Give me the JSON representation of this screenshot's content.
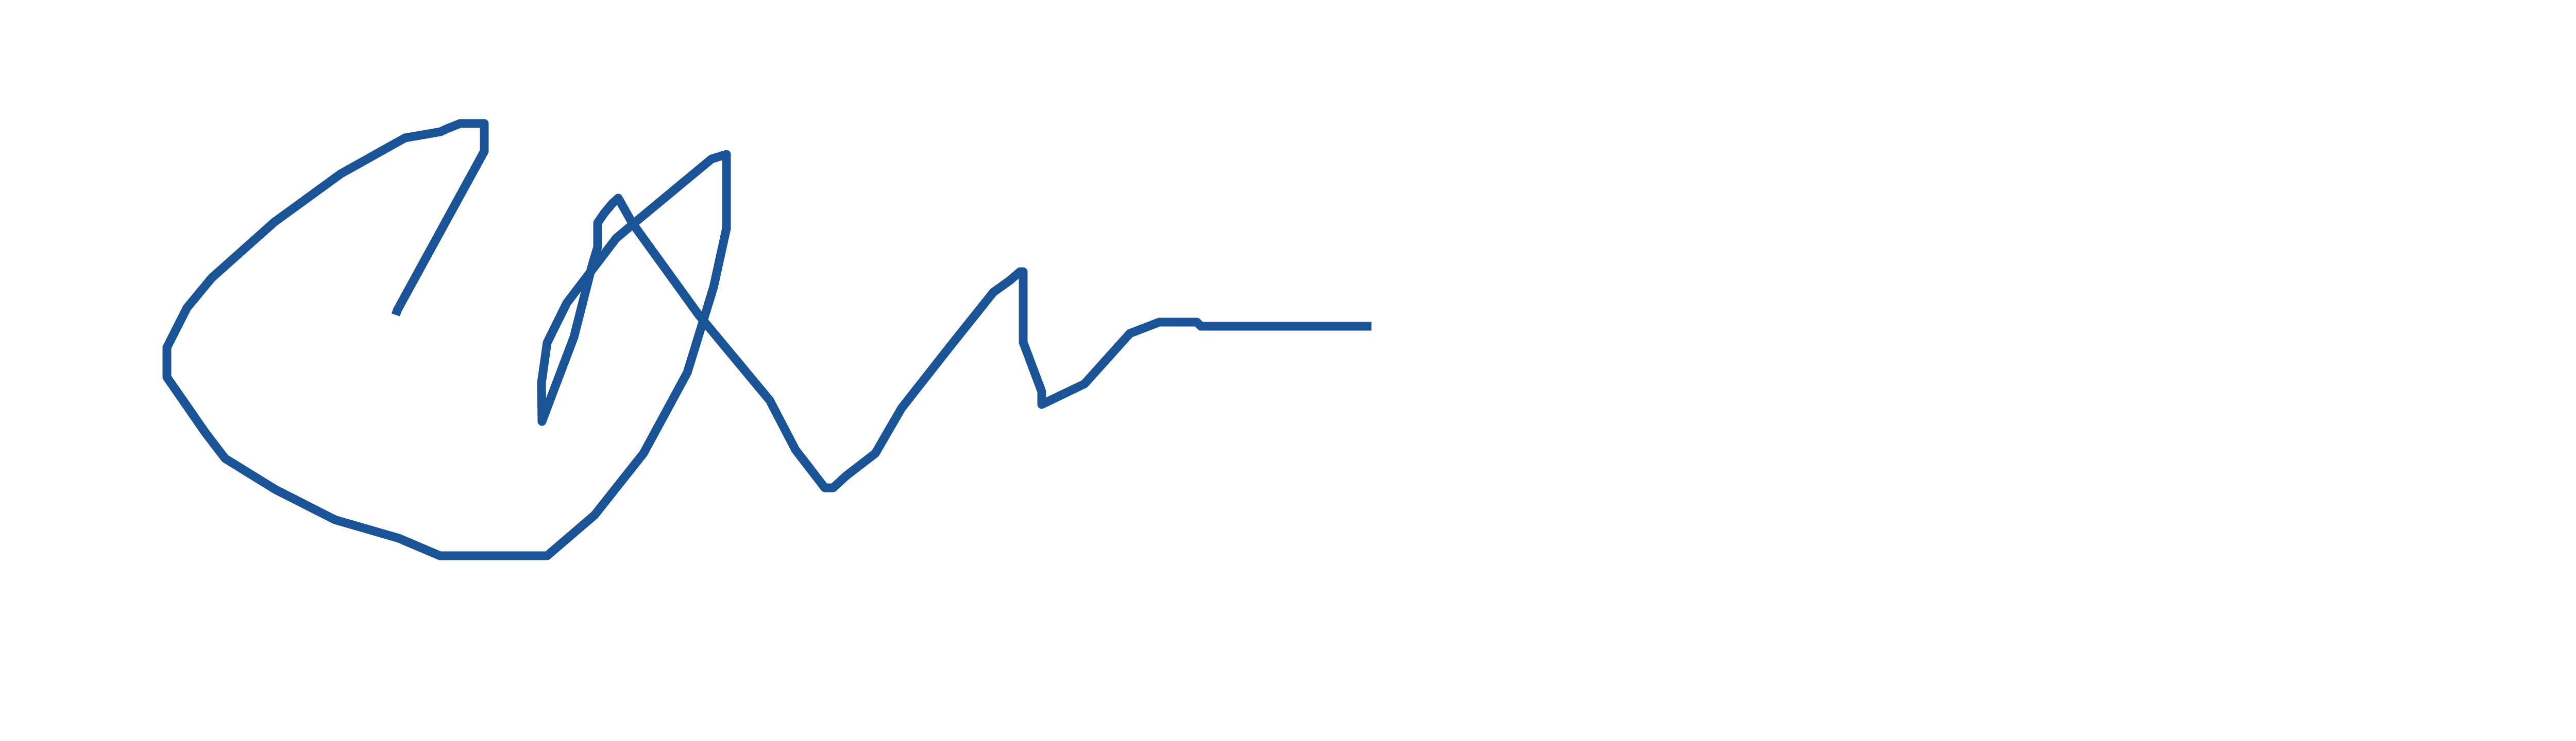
{
  "signature": {
    "ink_color": "#1b5496",
    "background_color": "#ffffff",
    "description_icon": "handwritten-signature"
  }
}
